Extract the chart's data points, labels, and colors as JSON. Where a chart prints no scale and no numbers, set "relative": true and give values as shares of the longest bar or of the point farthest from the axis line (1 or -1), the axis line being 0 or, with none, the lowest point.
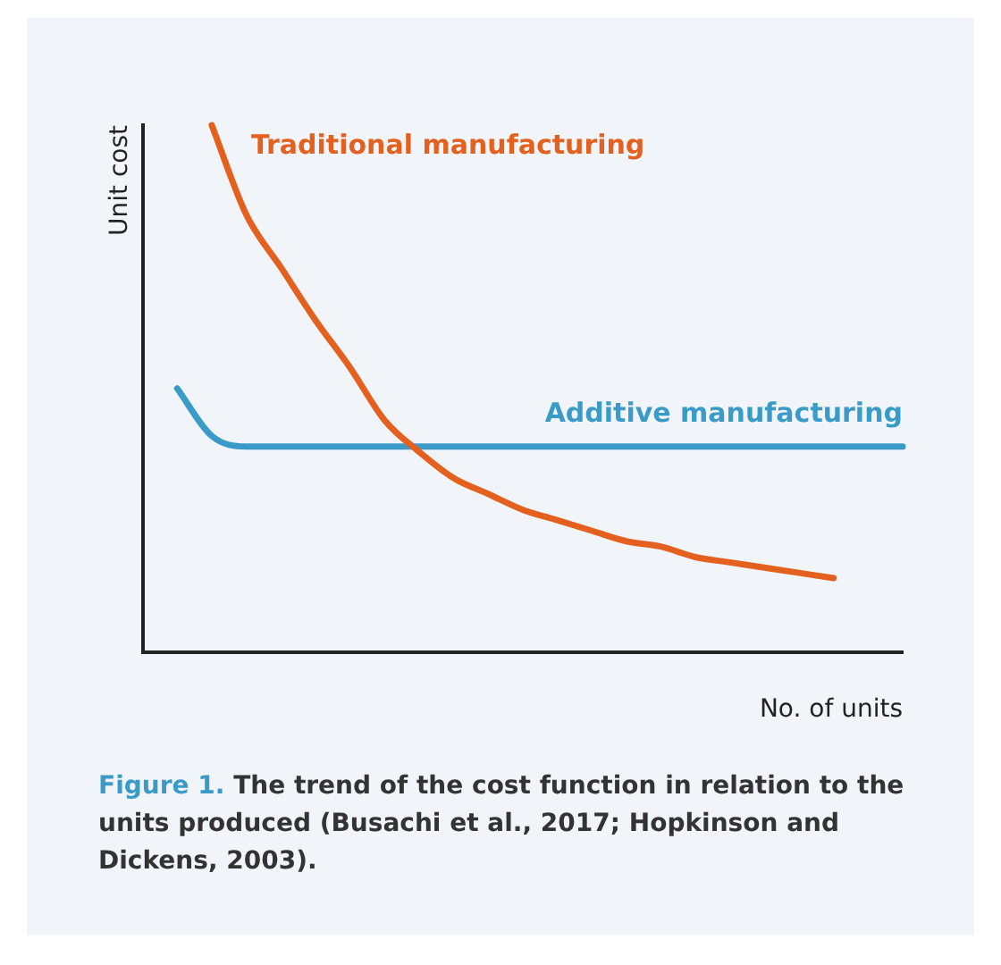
{
  "chart_data": {
    "type": "line",
    "title": "Figure 1.",
    "annotations": [
      "The trend of the cost function in relation to the units produced (Busachi et al., 2017; Hopkinson and Dickens, 2003)."
    ],
    "xlabel": "No. of units",
    "ylabel": "Unit cost",
    "relative": true,
    "legend": false,
    "grid": false,
    "marker": "none",
    "line_style": "solid",
    "categories": [
      null,
      null,
      null,
      null,
      null,
      null,
      null,
      null,
      null,
      null,
      null,
      null,
      null,
      null,
      null,
      null,
      null,
      null,
      null,
      null,
      null,
      null,
      null
    ],
    "series": [
      {
        "name": "Traditional manufacturing",
        "color": "#e4601e",
        "values": [
          null,
          null,
          1,
          0.83,
          0.73,
          0.63,
          0.54,
          0.44,
          0.38,
          0.33,
          0.3,
          0.27,
          0.25,
          0.23,
          0.21,
          0.2,
          0.18,
          0.17,
          0.16,
          0.15,
          0.14,
          null,
          null
        ]
      },
      {
        "name": "Additive manufacturing",
        "color": "#3b9bc8",
        "values": [
          null,
          0.5,
          0.41,
          0.39,
          0.39,
          0.39,
          0.39,
          0.39,
          0.39,
          0.39,
          0.39,
          0.39,
          0.39,
          0.39,
          0.39,
          0.39,
          0.39,
          0.39,
          0.39,
          0.39,
          0.39,
          0.39,
          0.39
        ]
      }
    ]
  }
}
